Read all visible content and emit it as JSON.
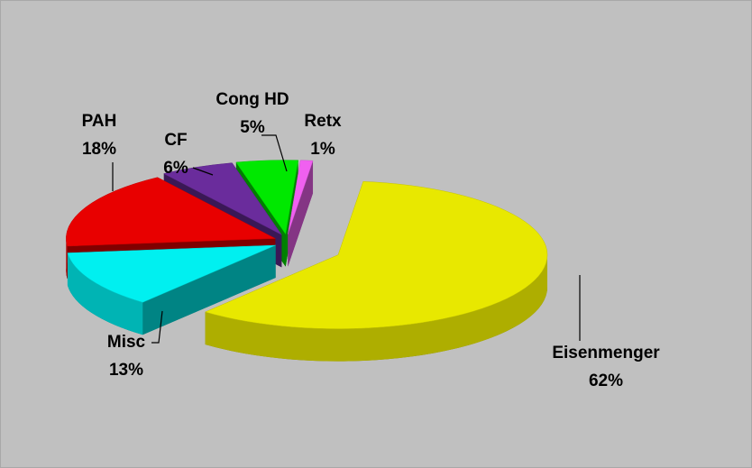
{
  "chart_data": {
    "type": "pie",
    "categories": [
      "Eisenmenger",
      "Misc",
      "PAH",
      "CF",
      "Cong HD",
      "Retx"
    ],
    "values": [
      62,
      13,
      18,
      6,
      5,
      1
    ],
    "value_labels": [
      "62%",
      "13%",
      "18%",
      "6%",
      "5%",
      "1%"
    ],
    "colors": [
      "#e8e800",
      "#00f0f0",
      "#e80000",
      "#6a2c9c",
      "#00e800",
      "#f060f0"
    ]
  }
}
